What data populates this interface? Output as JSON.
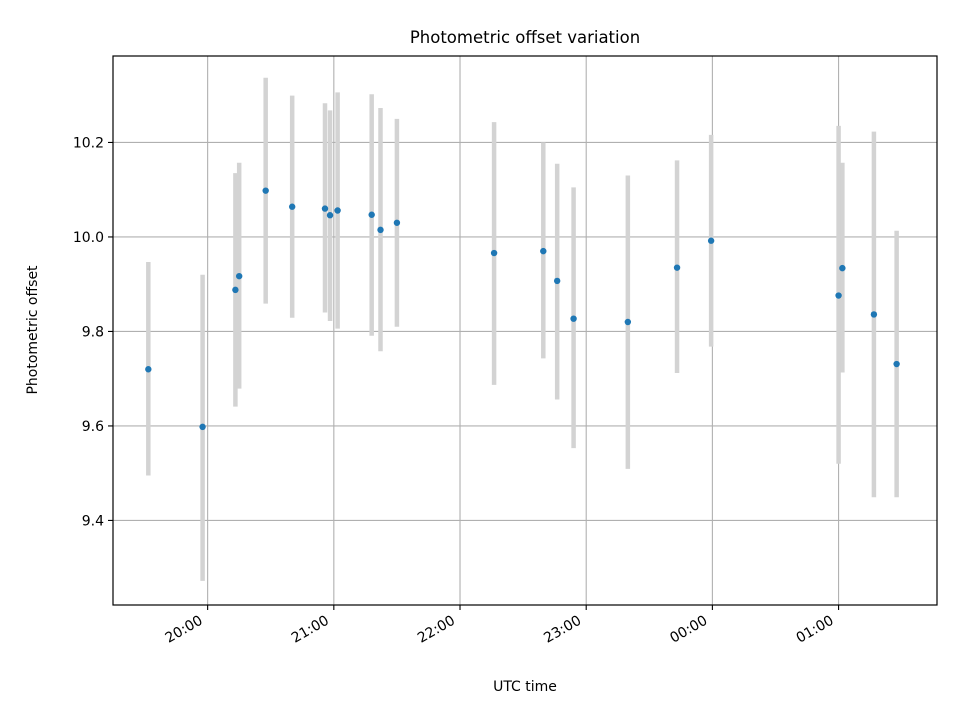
{
  "chart_data": {
    "type": "scatter",
    "title": "Photometric offset variation",
    "xlabel": "UTC time",
    "ylabel": "Photometric offset",
    "x_unit": "hours (UTC, continuing past midnight as 24+)",
    "xlim": [
      19.25,
      25.78
    ],
    "ylim": [
      9.221,
      10.383
    ],
    "grid": true,
    "xticks": [
      {
        "value": 20,
        "label": "20:00"
      },
      {
        "value": 21,
        "label": "21:00"
      },
      {
        "value": 22,
        "label": "22:00"
      },
      {
        "value": 23,
        "label": "23:00"
      },
      {
        "value": 24,
        "label": "00:00"
      },
      {
        "value": 25,
        "label": "01:00"
      }
    ],
    "yticks": [
      {
        "value": 9.4,
        "label": "9.4"
      },
      {
        "value": 9.6,
        "label": "9.6"
      },
      {
        "value": 9.8,
        "label": "9.8"
      },
      {
        "value": 10.0,
        "label": "10.0"
      },
      {
        "value": 10.2,
        "label": "10.2"
      }
    ],
    "series": [
      {
        "color": "#1f77b4",
        "errorbar_color": "#d3d3d3",
        "points": [
          {
            "x": 19.53,
            "y": 9.72,
            "low": 9.495,
            "high": 9.947
          },
          {
            "x": 19.96,
            "y": 9.598,
            "low": 9.272,
            "high": 9.92
          },
          {
            "x": 20.22,
            "y": 9.888,
            "low": 9.641,
            "high": 10.135
          },
          {
            "x": 20.25,
            "y": 9.917,
            "low": 9.679,
            "high": 10.157
          },
          {
            "x": 20.46,
            "y": 10.098,
            "low": 9.859,
            "high": 10.337
          },
          {
            "x": 20.67,
            "y": 10.064,
            "low": 9.829,
            "high": 10.299
          },
          {
            "x": 20.93,
            "y": 10.06,
            "low": 9.84,
            "high": 10.283
          },
          {
            "x": 20.97,
            "y": 10.046,
            "low": 9.822,
            "high": 10.268
          },
          {
            "x": 21.03,
            "y": 10.056,
            "low": 9.806,
            "high": 10.306
          },
          {
            "x": 21.3,
            "y": 10.047,
            "low": 9.791,
            "high": 10.302
          },
          {
            "x": 21.37,
            "y": 10.015,
            "low": 9.758,
            "high": 10.273
          },
          {
            "x": 21.5,
            "y": 10.03,
            "low": 9.81,
            "high": 10.25
          },
          {
            "x": 22.27,
            "y": 9.966,
            "low": 9.687,
            "high": 10.243
          },
          {
            "x": 22.66,
            "y": 9.97,
            "low": 9.743,
            "high": 10.2
          },
          {
            "x": 22.77,
            "y": 9.907,
            "low": 9.656,
            "high": 10.155
          },
          {
            "x": 22.9,
            "y": 9.827,
            "low": 9.553,
            "high": 10.105
          },
          {
            "x": 23.33,
            "y": 9.82,
            "low": 9.509,
            "high": 10.13
          },
          {
            "x": 23.72,
            "y": 9.935,
            "low": 9.712,
            "high": 10.162
          },
          {
            "x": 23.99,
            "y": 9.992,
            "low": 9.768,
            "high": 10.216
          },
          {
            "x": 25.0,
            "y": 9.876,
            "low": 9.52,
            "high": 10.235
          },
          {
            "x": 25.03,
            "y": 9.934,
            "low": 9.713,
            "high": 10.157
          },
          {
            "x": 25.28,
            "y": 9.836,
            "low": 9.449,
            "high": 10.223
          },
          {
            "x": 25.46,
            "y": 9.731,
            "low": 9.449,
            "high": 10.013
          }
        ]
      }
    ]
  }
}
